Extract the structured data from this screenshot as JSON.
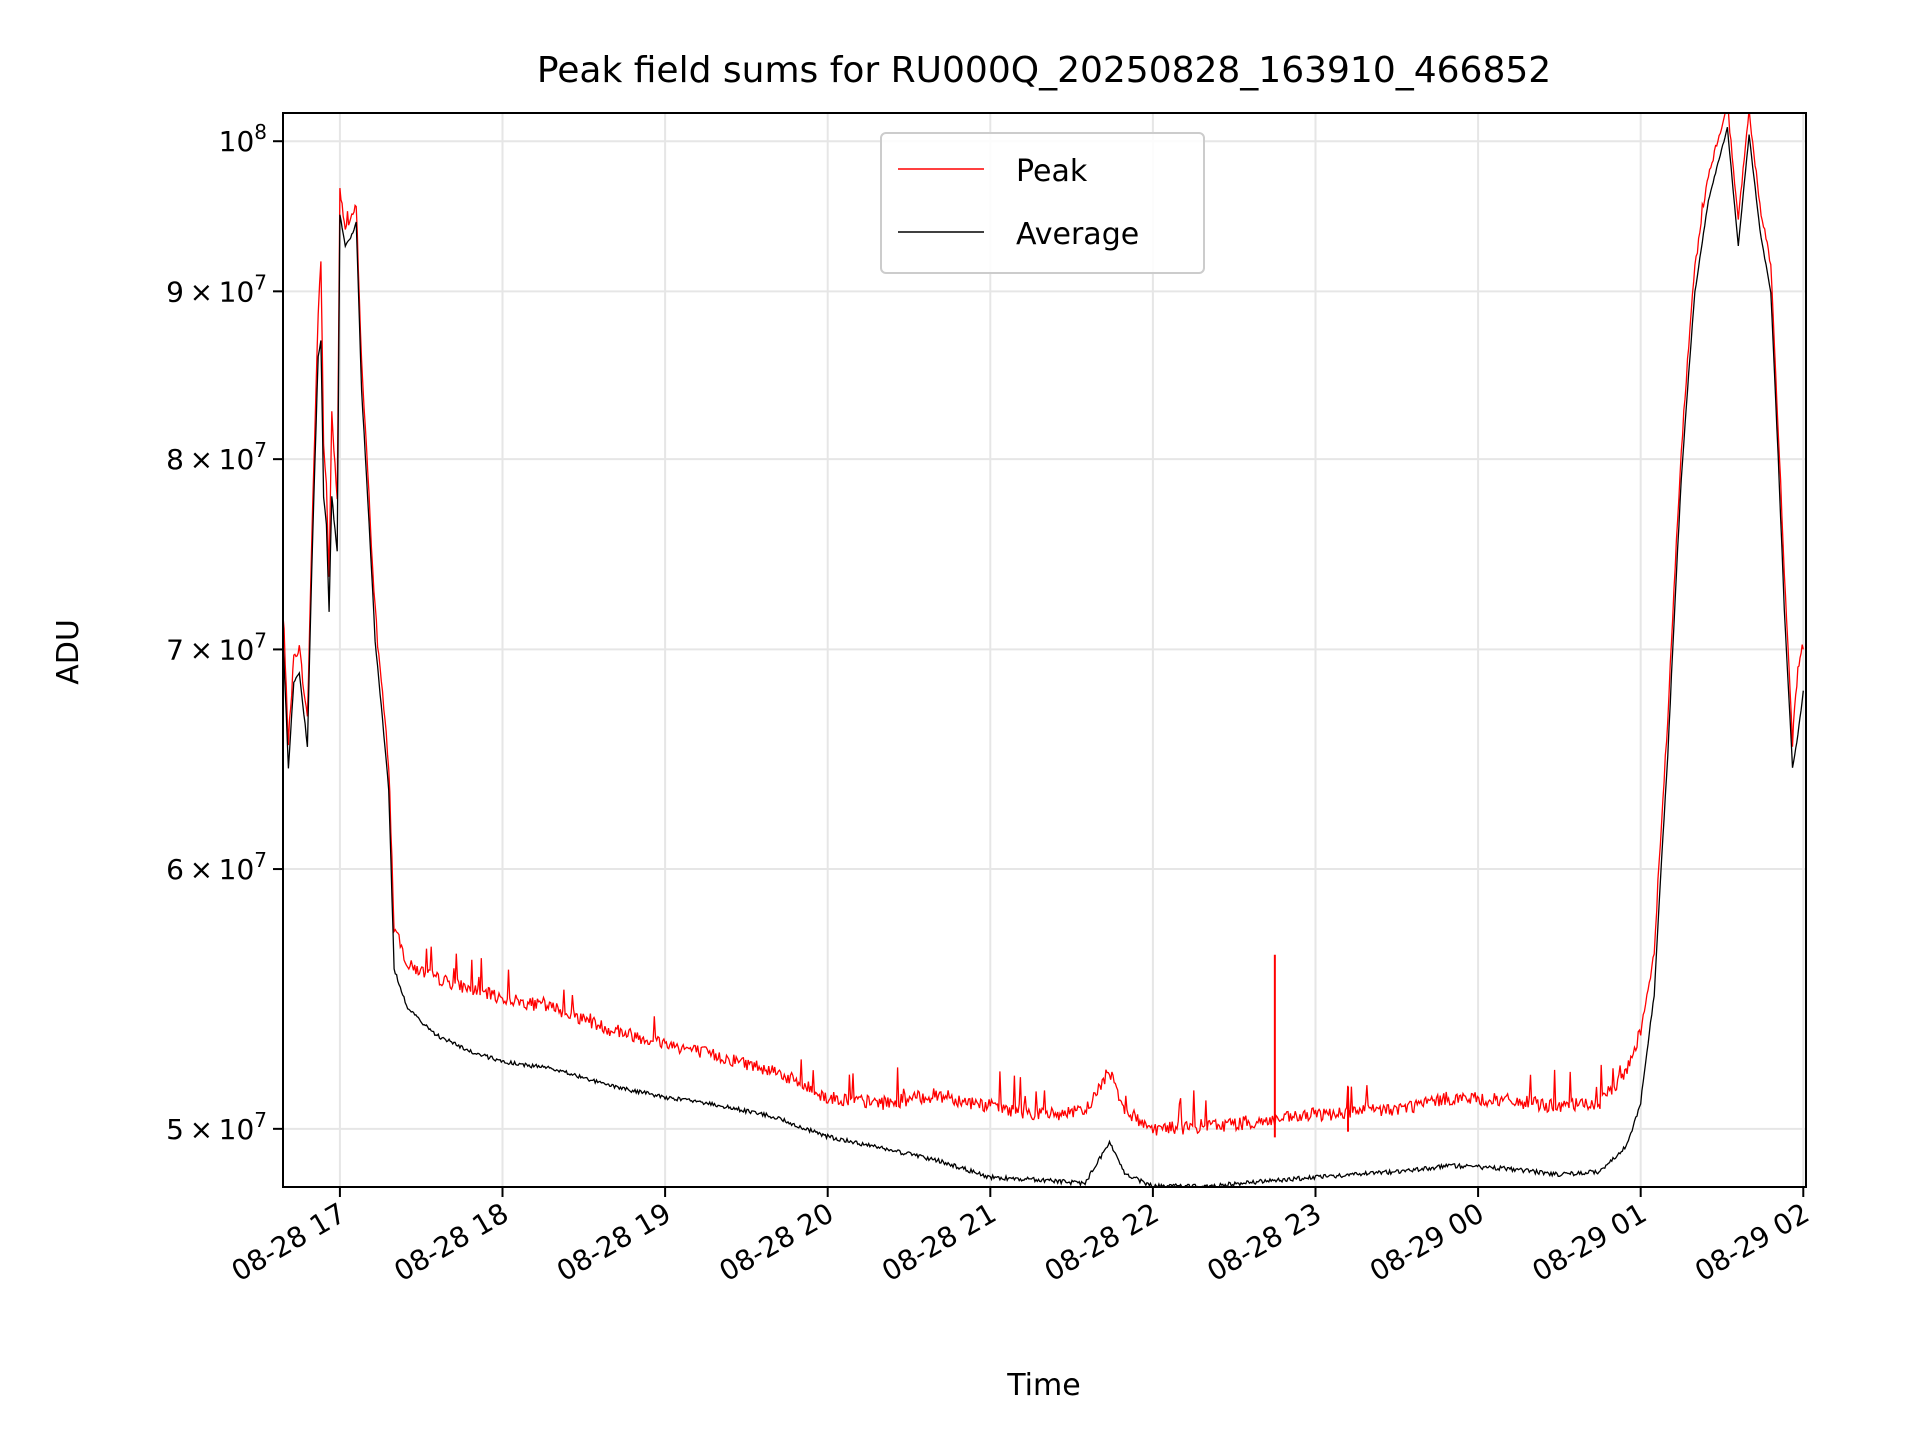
{
  "chart_data": {
    "type": "line",
    "title": "Peak field sums for RU000Q_20250828_163910_466852",
    "xlabel": "Time",
    "ylabel": "ADU",
    "x_axis_type": "datetime",
    "xlim": [
      "2025-08-28 16:39",
      "2025-08-29 02:01"
    ],
    "ylim": [
      48000000,
      102000000
    ],
    "y_scale": "log",
    "grid": true,
    "legend_position": "top-center",
    "x_ticks": [
      {
        "value": "2025-08-28 17:00",
        "label": "08-28 17"
      },
      {
        "value": "2025-08-28 18:00",
        "label": "08-28 18"
      },
      {
        "value": "2025-08-28 19:00",
        "label": "08-28 19"
      },
      {
        "value": "2025-08-28 20:00",
        "label": "08-28 20"
      },
      {
        "value": "2025-08-28 21:00",
        "label": "08-28 21"
      },
      {
        "value": "2025-08-28 22:00",
        "label": "08-28 22"
      },
      {
        "value": "2025-08-28 23:00",
        "label": "08-28 23"
      },
      {
        "value": "2025-08-29 00:00",
        "label": "08-29 00"
      },
      {
        "value": "2025-08-29 01:00",
        "label": "08-29 01"
      },
      {
        "value": "2025-08-29 02:00",
        "label": "08-29 02"
      }
    ],
    "y_ticks": [
      {
        "value": 50000000,
        "mant": "5",
        "exp": "7"
      },
      {
        "value": 60000000,
        "mant": "6",
        "exp": "7"
      },
      {
        "value": 70000000,
        "mant": "7",
        "exp": "7"
      },
      {
        "value": 80000000,
        "mant": "8",
        "exp": "7"
      },
      {
        "value": 90000000,
        "mant": "9",
        "exp": "7"
      },
      {
        "value": 100000000,
        "mant": "",
        "exp": "8"
      }
    ],
    "series": [
      {
        "name": "Peak",
        "color": "#ff0000",
        "points": [
          [
            "2025-08-28 16:39",
            71.0
          ],
          [
            "2025-08-28 16:41",
            65.0
          ],
          [
            "2025-08-28 16:43",
            69.0
          ],
          [
            "2025-08-28 16:45",
            69.5
          ],
          [
            "2025-08-28 16:48",
            66.0
          ],
          [
            "2025-08-28 16:50",
            77.0
          ],
          [
            "2025-08-28 16:52",
            88.0
          ],
          [
            "2025-08-28 16:53",
            91.5
          ],
          [
            "2025-08-28 16:54",
            80.0
          ],
          [
            "2025-08-28 16:55",
            78.0
          ],
          [
            "2025-08-28 16:56",
            73.0
          ],
          [
            "2025-08-28 16:57",
            82.0
          ],
          [
            "2025-08-28 16:59",
            77.0
          ],
          [
            "2025-08-28 17:00",
            96.0
          ],
          [
            "2025-08-28 17:02",
            93.5
          ],
          [
            "2025-08-28 17:04",
            94.0
          ],
          [
            "2025-08-28 17:06",
            95.0
          ],
          [
            "2025-08-28 17:08",
            85.0
          ],
          [
            "2025-08-28 17:13",
            71.0
          ],
          [
            "2025-08-28 17:18",
            64.0
          ],
          [
            "2025-08-28 17:20",
            57.0
          ],
          [
            "2025-08-28 17:25",
            55.5
          ],
          [
            "2025-08-28 17:35",
            55.0
          ],
          [
            "2025-08-28 17:50",
            54.5
          ],
          [
            "2025-08-28 18:00",
            54.2
          ],
          [
            "2025-08-28 18:20",
            53.8
          ],
          [
            "2025-08-28 18:40",
            53.0
          ],
          [
            "2025-08-28 19:00",
            52.5
          ],
          [
            "2025-08-28 19:20",
            52.0
          ],
          [
            "2025-08-28 19:40",
            51.5
          ],
          [
            "2025-08-28 20:00",
            50.5
          ],
          [
            "2025-08-28 20:20",
            50.3
          ],
          [
            "2025-08-28 20:40",
            50.6
          ],
          [
            "2025-08-28 21:00",
            50.2
          ],
          [
            "2025-08-28 21:20",
            49.9
          ],
          [
            "2025-08-28 21:35",
            50.0
          ],
          [
            "2025-08-28 21:44",
            51.5
          ],
          [
            "2025-08-28 21:50",
            50.0
          ],
          [
            "2025-08-28 22:00",
            49.4
          ],
          [
            "2025-08-28 22:20",
            49.5
          ],
          [
            "2025-08-28 22:45",
            49.7
          ],
          [
            "2025-08-28 23:00",
            49.9
          ],
          [
            "2025-08-28 23:30",
            50.1
          ],
          [
            "2025-08-28 23:50",
            50.5
          ],
          [
            "2025-08-29 00:10",
            50.4
          ],
          [
            "2025-08-29 00:30",
            50.2
          ],
          [
            "2025-08-29 00:45",
            50.3
          ],
          [
            "2025-08-29 00:55",
            51.5
          ],
          [
            "2025-08-29 01:00",
            53.0
          ],
          [
            "2025-08-29 01:05",
            56.0
          ],
          [
            "2025-08-29 01:10",
            66.0
          ],
          [
            "2025-08-29 01:15",
            80.0
          ],
          [
            "2025-08-29 01:20",
            91.0
          ],
          [
            "2025-08-29 01:25",
            97.0
          ],
          [
            "2025-08-29 01:32",
            102.0
          ],
          [
            "2025-08-29 01:36",
            94.0
          ],
          [
            "2025-08-29 01:40",
            101.5
          ],
          [
            "2025-08-29 01:44",
            95.0
          ],
          [
            "2025-08-29 01:48",
            91.0
          ],
          [
            "2025-08-29 01:53",
            73.0
          ],
          [
            "2025-08-29 01:56",
            65.0
          ],
          [
            "2025-08-29 01:58",
            68.5
          ],
          [
            "2025-08-29 02:00",
            70.0
          ]
        ]
      },
      {
        "name": "Average",
        "color": "#000000",
        "points": [
          [
            "2025-08-28 16:39",
            70.5
          ],
          [
            "2025-08-28 16:41",
            64.5
          ],
          [
            "2025-08-28 16:43",
            68.5
          ],
          [
            "2025-08-28 16:45",
            69.0
          ],
          [
            "2025-08-28 16:48",
            65.5
          ],
          [
            "2025-08-28 16:50",
            76.0
          ],
          [
            "2025-08-28 16:52",
            86.0
          ],
          [
            "2025-08-28 16:53",
            87.0
          ],
          [
            "2025-08-28 16:54",
            78.0
          ],
          [
            "2025-08-28 16:55",
            76.5
          ],
          [
            "2025-08-28 16:56",
            72.0
          ],
          [
            "2025-08-28 16:57",
            78.0
          ],
          [
            "2025-08-28 16:59",
            75.0
          ],
          [
            "2025-08-28 17:00",
            95.0
          ],
          [
            "2025-08-28 17:02",
            93.0
          ],
          [
            "2025-08-28 17:04",
            93.5
          ],
          [
            "2025-08-28 17:06",
            94.5
          ],
          [
            "2025-08-28 17:08",
            84.0
          ],
          [
            "2025-08-28 17:13",
            70.5
          ],
          [
            "2025-08-28 17:18",
            63.5
          ],
          [
            "2025-08-28 17:20",
            56.0
          ],
          [
            "2025-08-28 17:25",
            54.5
          ],
          [
            "2025-08-28 17:35",
            53.5
          ],
          [
            "2025-08-28 17:50",
            52.8
          ],
          [
            "2025-08-28 18:00",
            52.5
          ],
          [
            "2025-08-28 18:20",
            52.2
          ],
          [
            "2025-08-28 18:40",
            51.6
          ],
          [
            "2025-08-28 19:00",
            51.2
          ],
          [
            "2025-08-28 19:20",
            50.9
          ],
          [
            "2025-08-28 19:40",
            50.5
          ],
          [
            "2025-08-28 20:00",
            49.8
          ],
          [
            "2025-08-28 20:20",
            49.4
          ],
          [
            "2025-08-28 20:40",
            49.0
          ],
          [
            "2025-08-28 21:00",
            48.4
          ],
          [
            "2025-08-28 21:20",
            48.3
          ],
          [
            "2025-08-28 21:35",
            48.2
          ],
          [
            "2025-08-28 21:44",
            49.6
          ],
          [
            "2025-08-28 21:50",
            48.5
          ],
          [
            "2025-08-28 22:00",
            48.1
          ],
          [
            "2025-08-28 22:20",
            48.1
          ],
          [
            "2025-08-28 22:45",
            48.3
          ],
          [
            "2025-08-28 23:00",
            48.4
          ],
          [
            "2025-08-28 23:30",
            48.6
          ],
          [
            "2025-08-28 23:50",
            48.8
          ],
          [
            "2025-08-29 00:10",
            48.7
          ],
          [
            "2025-08-29 00:30",
            48.5
          ],
          [
            "2025-08-29 00:45",
            48.6
          ],
          [
            "2025-08-29 00:55",
            49.5
          ],
          [
            "2025-08-29 01:00",
            51.0
          ],
          [
            "2025-08-29 01:05",
            55.0
          ],
          [
            "2025-08-29 01:10",
            65.0
          ],
          [
            "2025-08-29 01:15",
            79.0
          ],
          [
            "2025-08-29 01:20",
            90.0
          ],
          [
            "2025-08-29 01:25",
            96.0
          ],
          [
            "2025-08-29 01:32",
            101.0
          ],
          [
            "2025-08-29 01:36",
            93.0
          ],
          [
            "2025-08-29 01:40",
            100.5
          ],
          [
            "2025-08-29 01:44",
            94.0
          ],
          [
            "2025-08-29 01:48",
            90.0
          ],
          [
            "2025-08-29 01:53",
            72.0
          ],
          [
            "2025-08-29 01:56",
            64.5
          ],
          [
            "2025-08-29 01:58",
            66.0
          ],
          [
            "2025-08-29 02:00",
            68.0
          ]
        ]
      }
    ],
    "annotations": [
      {
        "series": "Peak",
        "x": "2025-08-28 22:45",
        "y": 56.5,
        "note_type": "spike"
      },
      {
        "series": "Peak",
        "x": "2025-08-28 23:12",
        "y": 51.5,
        "note_type": "spike"
      }
    ],
    "y_value_unit_in_points": 1000000
  }
}
